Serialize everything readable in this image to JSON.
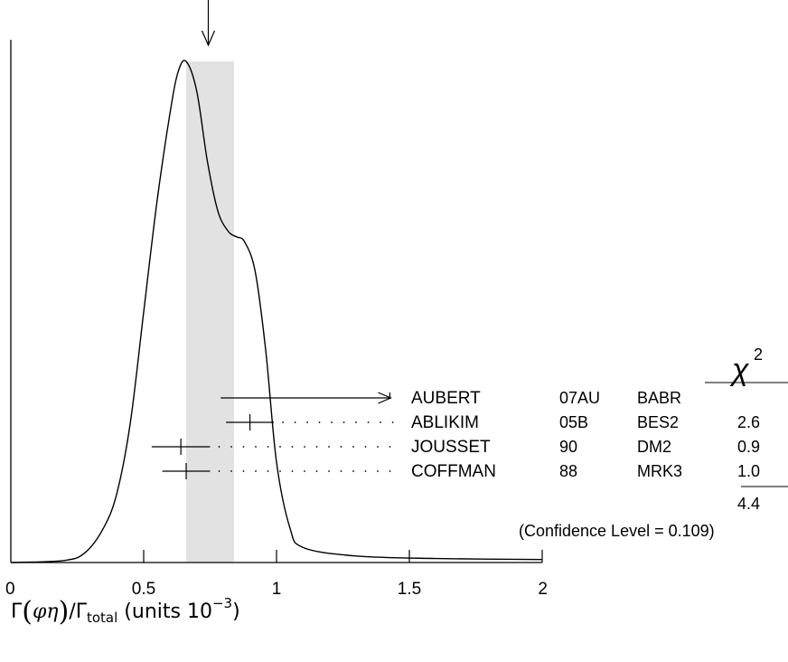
{
  "chart_data": {
    "type": "ideogram",
    "xlim": [
      0,
      2
    ],
    "x_ticks": [
      "0",
      "0.5",
      "1",
      "1.5",
      "2"
    ],
    "xlabel": {
      "prefix": "Γ",
      "paren_open": "(",
      "decay": "φη",
      "paren_close": ")",
      "slash": "/",
      "total_symbol": "Γ",
      "total_sub": "total",
      "units_text": " (units 10",
      "units_exp": "−3",
      "units_close": ")"
    },
    "average": {
      "value": 0.75,
      "error_low": 0.09,
      "error_high": 0.09
    },
    "ideogram_curve": [
      [
        0.0,
        0.0
      ],
      [
        0.2,
        0.004
      ],
      [
        0.28,
        0.02
      ],
      [
        0.35,
        0.07
      ],
      [
        0.4,
        0.14
      ],
      [
        0.45,
        0.28
      ],
      [
        0.5,
        0.5
      ],
      [
        0.55,
        0.72
      ],
      [
        0.6,
        0.9
      ],
      [
        0.63,
        0.98
      ],
      [
        0.66,
        1.0
      ],
      [
        0.7,
        0.94
      ],
      [
        0.74,
        0.8
      ],
      [
        0.78,
        0.7
      ],
      [
        0.82,
        0.66
      ],
      [
        0.85,
        0.65
      ],
      [
        0.88,
        0.64
      ],
      [
        0.92,
        0.58
      ],
      [
        0.96,
        0.42
      ],
      [
        1.0,
        0.2
      ],
      [
        1.05,
        0.07
      ],
      [
        1.1,
        0.03
      ],
      [
        1.3,
        0.013
      ],
      [
        1.6,
        0.008
      ],
      [
        2.0,
        0.006
      ]
    ],
    "chi2_header": "χ",
    "chi2_header_exp": "2",
    "measurements": [
      {
        "author": "AUBERT",
        "ref": "07AU",
        "experiment": "BABR",
        "value": 0.9,
        "error": null,
        "chi2": "",
        "is_limit": true,
        "limit_start": 0.79,
        "limit_end": 1.43
      },
      {
        "author": "ABLIKIM",
        "ref": "05B",
        "experiment": "BES2",
        "value": 0.9,
        "error": 0.09,
        "chi2": "2.6",
        "is_limit": false
      },
      {
        "author": "JOUSSET",
        "ref": "90",
        "experiment": "DM2",
        "value": 0.64,
        "error": 0.11,
        "chi2": "0.9",
        "is_limit": false
      },
      {
        "author": "COFFMAN",
        "ref": "88",
        "experiment": "MRK3",
        "value": 0.66,
        "error": 0.09,
        "chi2": "1.0",
        "is_limit": false
      }
    ],
    "chi2_total": "4.4",
    "confidence_level": "(Confidence Level = 0.109)"
  }
}
